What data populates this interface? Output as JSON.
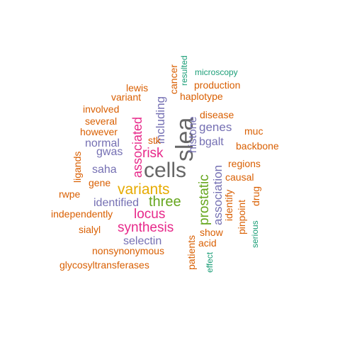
{
  "colors": {
    "orange": "#d95f02",
    "purple": "#7570b3",
    "magenta": "#e7298a",
    "gray": "#666666",
    "teal": "#1b9e77",
    "gold": "#e6ab02",
    "green": "#66a61e"
  },
  "words": [
    {
      "text": "slea",
      "color": "gray"
    },
    {
      "text": "cells",
      "color": "gray"
    },
    {
      "text": "variants",
      "color": "gold"
    },
    {
      "text": "prostatic",
      "color": "green"
    },
    {
      "text": "three",
      "color": "green"
    },
    {
      "text": "synthesis",
      "color": "magenta"
    },
    {
      "text": "locus",
      "color": "magenta"
    },
    {
      "text": "associated",
      "color": "magenta"
    },
    {
      "text": "risk",
      "color": "magenta"
    },
    {
      "text": "including",
      "color": "purple"
    },
    {
      "text": "histone",
      "color": "purple"
    },
    {
      "text": "genes",
      "color": "purple"
    },
    {
      "text": "association",
      "color": "purple"
    },
    {
      "text": "bgalt",
      "color": "purple"
    },
    {
      "text": "normal",
      "color": "purple"
    },
    {
      "text": "gwas",
      "color": "purple"
    },
    {
      "text": "saha",
      "color": "purple"
    },
    {
      "text": "identified",
      "color": "purple"
    },
    {
      "text": "selectin",
      "color": "purple"
    },
    {
      "text": "cancer",
      "color": "orange"
    },
    {
      "text": "resulted",
      "color": "teal"
    },
    {
      "text": "microscopy",
      "color": "teal"
    },
    {
      "text": "lewis",
      "color": "orange"
    },
    {
      "text": "production",
      "color": "orange"
    },
    {
      "text": "variant",
      "color": "orange"
    },
    {
      "text": "haplotype",
      "color": "orange"
    },
    {
      "text": "involved",
      "color": "orange"
    },
    {
      "text": "disease",
      "color": "orange"
    },
    {
      "text": "several",
      "color": "orange"
    },
    {
      "text": "however",
      "color": "orange"
    },
    {
      "text": "muc",
      "color": "orange"
    },
    {
      "text": "stk",
      "color": "orange"
    },
    {
      "text": "backbone",
      "color": "orange"
    },
    {
      "text": "ligands",
      "color": "orange"
    },
    {
      "text": "regions",
      "color": "orange"
    },
    {
      "text": "gene",
      "color": "orange"
    },
    {
      "text": "causal",
      "color": "orange"
    },
    {
      "text": "identify",
      "color": "orange"
    },
    {
      "text": "drug",
      "color": "orange"
    },
    {
      "text": "rwpe",
      "color": "orange"
    },
    {
      "text": "independently",
      "color": "orange"
    },
    {
      "text": "pinpoint",
      "color": "orange"
    },
    {
      "text": "sialyl",
      "color": "orange"
    },
    {
      "text": "show",
      "color": "orange"
    },
    {
      "text": "serious",
      "color": "teal"
    },
    {
      "text": "acid",
      "color": "orange"
    },
    {
      "text": "patients",
      "color": "orange"
    },
    {
      "text": "effect",
      "color": "teal"
    },
    {
      "text": "nonsynonymous",
      "color": "orange"
    },
    {
      "text": "glycosyltransferases",
      "color": "orange"
    }
  ]
}
